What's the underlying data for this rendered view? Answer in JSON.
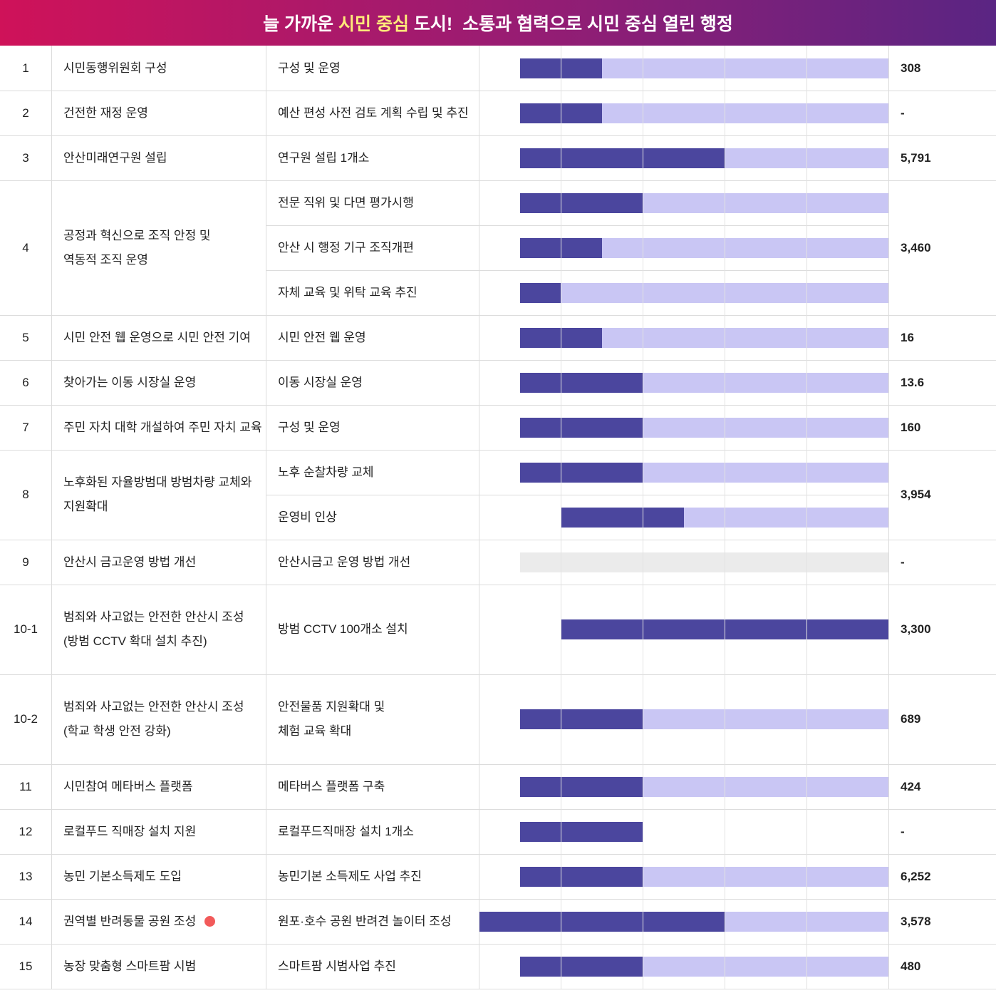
{
  "header": {
    "title_parts": [
      {
        "text": "늘 가까운 "
      },
      {
        "text": "시민 중심",
        "highlight": true
      },
      {
        "text": " 도시!  소통과 협력으로 시민 중심 열린 행정"
      }
    ]
  },
  "timeline": {
    "xlim": [
      0,
      5
    ],
    "xticks": [
      1,
      2,
      3,
      4
    ],
    "colors": {
      "done": "#4b469e",
      "planned": "#c9c6f4",
      "pending": "#ebebeb"
    }
  },
  "table": {
    "rows": [
      {
        "no": "1",
        "project": [
          "시민동행위원회 구성"
        ],
        "tasks": [
          {
            "text": [
              "구성 및 운영"
            ],
            "start": 0.5,
            "done": 1.5,
            "end": 5
          }
        ],
        "budget": "308"
      },
      {
        "no": "2",
        "project": [
          "건전한 재정 운영"
        ],
        "tasks": [
          {
            "text": [
              "예산 편성 사전 검토 계획 수립 및 추진"
            ],
            "start": 0.5,
            "done": 1.5,
            "end": 5
          }
        ],
        "budget": "-"
      },
      {
        "no": "3",
        "project": [
          "안산미래연구원 설립"
        ],
        "tasks": [
          {
            "text": [
              "연구원 설립 1개소"
            ],
            "start": 0.5,
            "done": 3,
            "end": 5
          }
        ],
        "budget": "5,791"
      },
      {
        "no": "4",
        "project": [
          "공정과 혁신으로 조직 안정 및",
          "역동적 조직 운영"
        ],
        "tasks": [
          {
            "text": [
              "전문 직위 및 다면 평가시행"
            ],
            "start": 0.5,
            "done": 2,
            "end": 5
          },
          {
            "text": [
              "안산 시 행정 기구 조직개편"
            ],
            "start": 0.5,
            "done": 1.5,
            "end": 5
          },
          {
            "text": [
              "자체 교육 및 위탁 교육 추진"
            ],
            "start": 0.5,
            "done": 1,
            "end": 5
          }
        ],
        "budget": "3,460"
      },
      {
        "no": "5",
        "project": [
          "시민 안전 웹 운영으로 시민 안전 기여"
        ],
        "tasks": [
          {
            "text": [
              "시민 안전 웹 운영"
            ],
            "start": 0.5,
            "done": 1.5,
            "end": 5
          }
        ],
        "budget": "16"
      },
      {
        "no": "6",
        "project": [
          "찾아가는 이동 시장실 운영"
        ],
        "tasks": [
          {
            "text": [
              "이동 시장실 운영"
            ],
            "start": 0.5,
            "done": 2,
            "end": 5
          }
        ],
        "budget": "13.6"
      },
      {
        "no": "7",
        "project": [
          "주민 자치 대학 개설하여 주민 자치 교육"
        ],
        "tasks": [
          {
            "text": [
              "구성 및 운영"
            ],
            "start": 0.5,
            "done": 2,
            "end": 5
          }
        ],
        "budget": "160"
      },
      {
        "no": "8",
        "project": [
          "노후화된 자율방범대 방범차량 교체와",
          "지원확대"
        ],
        "tasks": [
          {
            "text": [
              "노후 순찰차량 교체"
            ],
            "start": 0.5,
            "done": 2,
            "end": 5
          },
          {
            "text": [
              "운영비 인상"
            ],
            "start": 1,
            "done": 2.5,
            "end": 5
          }
        ],
        "budget": "3,954"
      },
      {
        "no": "9",
        "project": [
          "안산시 금고운영 방법 개선"
        ],
        "tasks": [
          {
            "text": [
              "안산시금고 운영 방법 개선"
            ],
            "start": 0.5,
            "done": null,
            "end": 5
          }
        ],
        "budget": "-"
      },
      {
        "no": "10-1",
        "project": [
          "범죄와 사고없는 안전한 안산시 조성",
          "(방범 CCTV 확대 설치 추진)"
        ],
        "tasks": [
          {
            "text": [
              "방범 CCTV 100개소 설치"
            ],
            "start": 1,
            "done": 5,
            "end": 5
          }
        ],
        "budget": "3,300"
      },
      {
        "no": "10-2",
        "project": [
          "범죄와 사고없는 안전한 안산시 조성",
          "(학교 학생 안전 강화)"
        ],
        "tasks": [
          {
            "text": [
              "안전물품 지원확대 및",
              "체험 교육 확대"
            ],
            "start": 0.5,
            "done": 2,
            "end": 5
          }
        ],
        "budget": "689"
      },
      {
        "no": "11",
        "project": [
          "시민참여 메타버스 플랫폼"
        ],
        "tasks": [
          {
            "text": [
              "메타버스 플랫폼 구축"
            ],
            "start": 0.5,
            "done": 2,
            "end": 5
          }
        ],
        "budget": "424"
      },
      {
        "no": "12",
        "project": [
          "로컬푸드 직매장 설치 지원"
        ],
        "tasks": [
          {
            "text": [
              "로컬푸드직매장 설치 1개소"
            ],
            "start": 0.5,
            "done": 2,
            "end": 2
          }
        ],
        "budget": "-"
      },
      {
        "no": "13",
        "project": [
          "농민 기본소득제도 도입"
        ],
        "tasks": [
          {
            "text": [
              "농민기본 소득제도 사업 추진"
            ],
            "start": 0.5,
            "done": 2,
            "end": 5
          }
        ],
        "budget": "6,252"
      },
      {
        "no": "14",
        "project": [
          "권역별 반려동물 공원 조성"
        ],
        "badge": true,
        "tasks": [
          {
            "text": [
              "원포·호수 공원 반려견 놀이터 조성"
            ],
            "start": 0,
            "done": 3,
            "end": 5
          }
        ],
        "budget": "3,578"
      },
      {
        "no": "15",
        "project": [
          "농장 맞춤형 스마트팜 시범"
        ],
        "tasks": [
          {
            "text": [
              "스마트팜 시범사업 추진"
            ],
            "start": 0.5,
            "done": 2,
            "end": 5
          }
        ],
        "budget": "480"
      }
    ]
  }
}
